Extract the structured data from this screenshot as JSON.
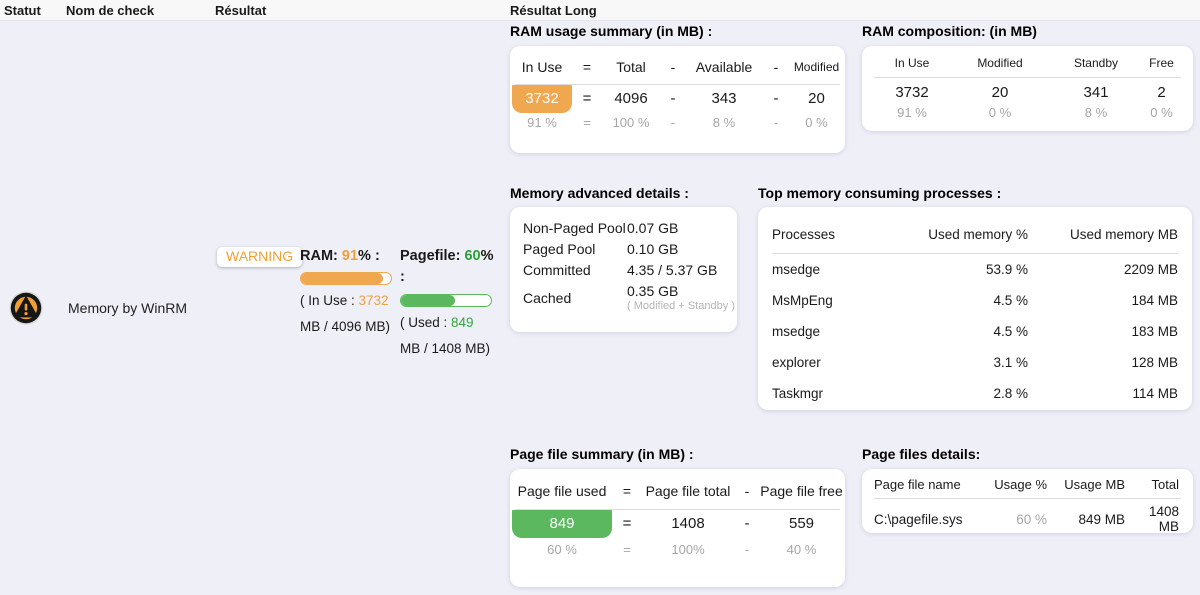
{
  "colors": {
    "warning_orange": "#efa750",
    "warning_text_orange": "#f2a033",
    "success_green": "#5cb85f",
    "success_text_green": "#2f9e38",
    "muted_gray": "#a6a6a6"
  },
  "header": {
    "statut": "Statut",
    "nom_de_check": "Nom de check",
    "resultat": "Résultat",
    "resultat_long": "Résultat Long"
  },
  "check": {
    "name": "Memory by WinRM",
    "status_badge": "WARNING",
    "status_icon": "warning-circle-icon",
    "ram": {
      "label": "RAM:",
      "percent": "91",
      "after_percent": "% :",
      "bar_percent": 91,
      "detail_prefix": "( In Use : ",
      "detail_value": "3732",
      "detail_suffix": " MB / 4096 MB)"
    },
    "pagefile": {
      "label": "Pagefile:",
      "percent": "60",
      "after_percent": "%",
      "colon": ":",
      "bar_percent": 60,
      "detail_prefix": "( Used : ",
      "detail_value": "849",
      "detail_suffix": " MB / 1408 MB)"
    }
  },
  "ram_summary": {
    "title": "RAM usage summary (in MB) :",
    "headers": [
      "In Use",
      "=",
      "Total",
      "-",
      "Available",
      "-",
      "Modified"
    ],
    "values": [
      "3732",
      "=",
      "4096",
      "-",
      "343",
      "-",
      "20"
    ],
    "percents": [
      "91 %",
      "=",
      "100 %",
      "-",
      "8 %",
      "-",
      "0 %"
    ]
  },
  "ram_composition": {
    "title": "RAM composition: (in MB)",
    "headers": [
      "In Use",
      "Modified",
      "Standby",
      "Free"
    ],
    "values": [
      "3732",
      "20",
      "341",
      "2"
    ],
    "percents": [
      "91 %",
      "0 %",
      "8 %",
      "0 %"
    ]
  },
  "memory_details": {
    "title": "Memory advanced details :",
    "rows": [
      {
        "label": "Non-Paged Pool",
        "value": "0.07 GB"
      },
      {
        "label": "Paged Pool",
        "value": "0.10 GB"
      },
      {
        "label": "Committed",
        "value": "4.35 / 5.37 GB"
      },
      {
        "label": "Cached",
        "value": "0.35 GB",
        "note": "( Modified + Standby )"
      }
    ]
  },
  "processes": {
    "title": "Top memory consuming processes :",
    "headers": [
      "Processes",
      "Used memory %",
      "Used memory MB"
    ],
    "rows": [
      {
        "name": "msedge",
        "percent": "53.9 %",
        "mb": "2209 MB"
      },
      {
        "name": "MsMpEng",
        "percent": "4.5 %",
        "mb": "184 MB"
      },
      {
        "name": "msedge",
        "percent": "4.5 %",
        "mb": "183 MB"
      },
      {
        "name": "explorer",
        "percent": "3.1 %",
        "mb": "128 MB"
      },
      {
        "name": "Taskmgr",
        "percent": "2.8 %",
        "mb": "114 MB"
      }
    ]
  },
  "pagefile_summary": {
    "title": "Page file summary (in MB) :",
    "headers": [
      "Page file used",
      "=",
      "Page file total",
      "-",
      "Page file free"
    ],
    "values": [
      "849",
      "=",
      "1408",
      "-",
      "559"
    ],
    "percents": [
      "60 %",
      "=",
      "100%",
      "-",
      "40 %"
    ]
  },
  "pagefile_details": {
    "title": "Page files details:",
    "headers": [
      "Page file name",
      "Usage %",
      "Usage MB",
      "Total"
    ],
    "rows": [
      {
        "name": "C:\\pagefile.sys",
        "usage_percent": "60 %",
        "usage_mb": "849 MB",
        "total": "1408 MB"
      }
    ]
  }
}
